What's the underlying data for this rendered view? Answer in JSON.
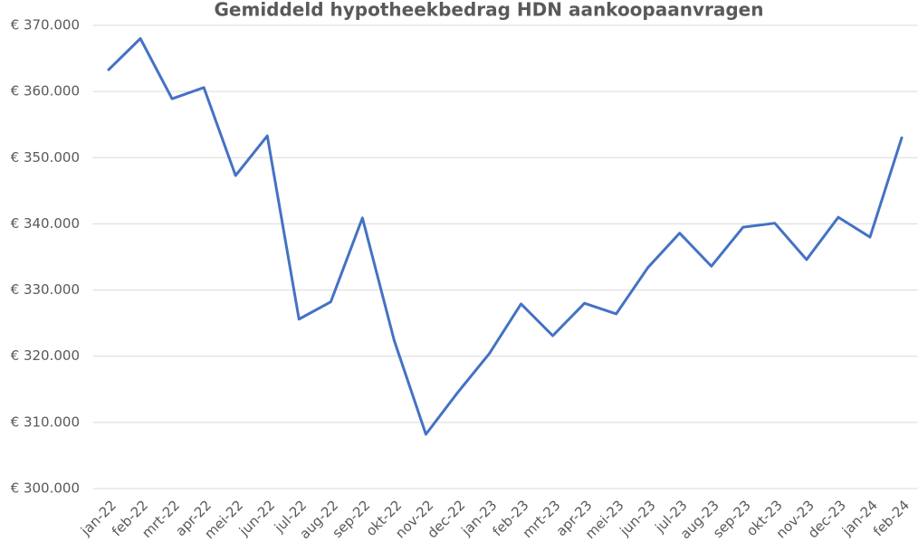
{
  "chart_data": {
    "type": "line",
    "title": "Gemiddeld hypotheekbedrag HDN aankoopaanvragen",
    "categories": [
      "jan-22",
      "feb-22",
      "mrt-22",
      "apr-22",
      "mei-22",
      "jun-22",
      "jul-22",
      "aug-22",
      "sep-22",
      "okt-22",
      "nov-22",
      "dec-22",
      "jan-23",
      "feb-23",
      "mrt-23",
      "apr-23",
      "mei-23",
      "jun-23",
      "jul-23",
      "aug-23",
      "sep-23",
      "okt-23",
      "nov-23",
      "dec-23",
      "jan-24",
      "feb-24"
    ],
    "series": [
      {
        "color": "#4472c4",
        "values": [
          363300,
          368000,
          358900,
          360600,
          347300,
          353300,
          325600,
          328200,
          340900,
          322400,
          308200,
          314500,
          320400,
          327900,
          323100,
          328000,
          326400,
          333400,
          338600,
          333600,
          339500,
          340100,
          334600,
          341000,
          338000,
          353000
        ]
      }
    ],
    "ylim": [
      300000,
      370000
    ],
    "yticks": [
      {
        "value": 300000,
        "label": "€ 300.000"
      },
      {
        "value": 310000,
        "label": "€ 310.000"
      },
      {
        "value": 320000,
        "label": "€ 320.000"
      },
      {
        "value": 330000,
        "label": "€ 330.000"
      },
      {
        "value": 340000,
        "label": "€ 340.000"
      },
      {
        "value": 350000,
        "label": "€ 350.000"
      },
      {
        "value": 360000,
        "label": "€ 360.000"
      },
      {
        "value": 370000,
        "label": "€ 370.000"
      }
    ],
    "grid": true
  }
}
